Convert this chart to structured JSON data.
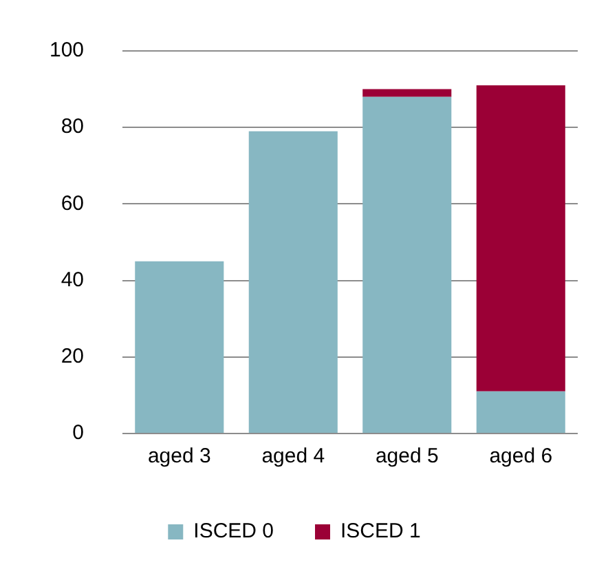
{
  "chart_data": {
    "type": "bar",
    "stacked": true,
    "categories": [
      "aged 3",
      "aged 4",
      "aged 5",
      "aged 6"
    ],
    "series": [
      {
        "name": "ISCED 0",
        "color": "#87b7c2",
        "values": [
          45,
          79,
          88,
          11
        ]
      },
      {
        "name": "ISCED 1",
        "color": "#9b0036",
        "values": [
          0,
          0,
          2,
          80
        ]
      }
    ],
    "ylim": [
      0,
      100
    ],
    "yticks": [
      0,
      20,
      40,
      60,
      80,
      100
    ],
    "grid": "y",
    "legend": "bottom"
  }
}
